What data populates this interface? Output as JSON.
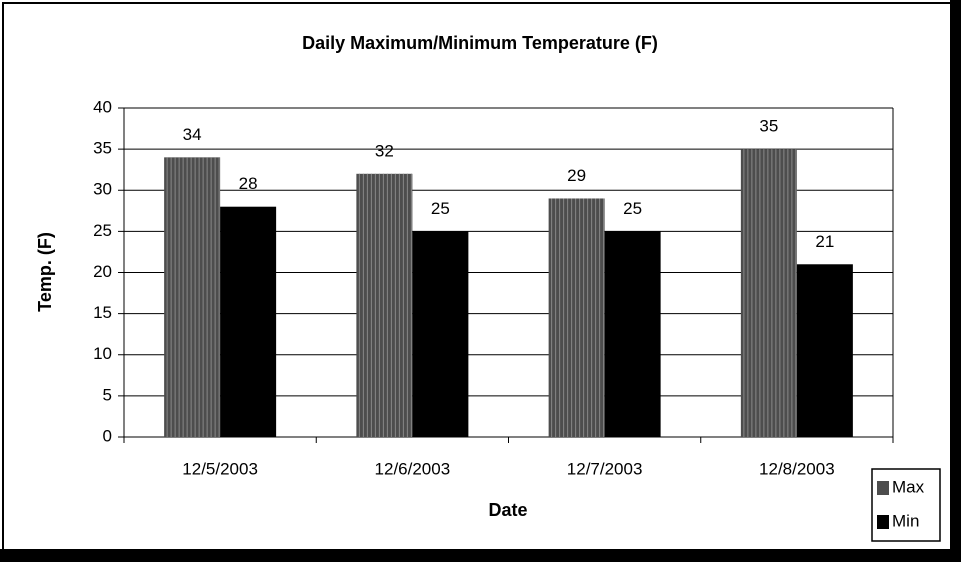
{
  "chart_data": {
    "type": "bar",
    "title": "Daily Maximum/Minimum Temperature (F)",
    "x_label": "Date",
    "y_label": "Temp. (F)",
    "categories": [
      "12/5/2003",
      "12/6/2003",
      "12/7/2003",
      "12/8/2003"
    ],
    "series": [
      {
        "name": "Max",
        "color": "#4d4d4d",
        "values": [
          34,
          32,
          29,
          35
        ]
      },
      {
        "name": "Min",
        "color": "#000000",
        "values": [
          28,
          25,
          25,
          21
        ]
      }
    ],
    "ylim": [
      0,
      40
    ],
    "yticks": [
      0,
      5,
      10,
      15,
      20,
      25,
      30,
      35,
      40
    ],
    "grid": true,
    "legend": "bottom-right"
  }
}
